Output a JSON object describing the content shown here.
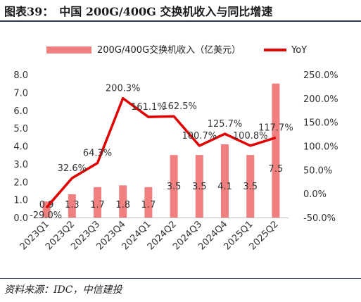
{
  "figure": {
    "title": "图表39：　中国 200G/400G 交换机收入与同比增速",
    "source": "资料来源：IDC，中信建投"
  },
  "chart_data": {
    "type": "bar",
    "categories": [
      "2023Q1",
      "2023Q2",
      "2023Q3",
      "2023Q4",
      "2024Q1",
      "2024Q2",
      "2024Q3",
      "2024Q4",
      "2025Q1",
      "2025Q2"
    ],
    "series": [
      {
        "name": "200G/400G交换机收入（亿美元）",
        "type": "bar",
        "axis": "left",
        "color": "#f08080",
        "values": [
          0.9,
          1.3,
          1.7,
          1.8,
          1.7,
          3.5,
          3.5,
          4.1,
          3.5,
          7.5
        ],
        "labels": [
          "0.9",
          "1.3",
          "1.7",
          "1.8",
          "1.7",
          "3.5",
          "3.5",
          "4.1",
          "3.5",
          "7.5"
        ]
      },
      {
        "name": "YoY",
        "type": "line",
        "axis": "right",
        "color": "#e00000",
        "values": [
          -29.0,
          32.6,
          64.3,
          200.3,
          161.1,
          162.5,
          100.7,
          125.7,
          100.8,
          117.7
        ],
        "labels": [
          "-29.0%",
          "32.6%",
          "64.3%",
          "200.3%",
          "161.1%",
          "162.5%",
          "100.7%",
          "125.7%",
          "100.8%",
          "117.7%"
        ]
      }
    ],
    "y_left": {
      "ylim": [
        0,
        8
      ],
      "ticks": [
        "0.0",
        "1.0",
        "2.0",
        "3.0",
        "4.0",
        "5.0",
        "6.0",
        "7.0",
        "8.0"
      ]
    },
    "y_right": {
      "ylim": [
        -50,
        250
      ],
      "ticks": [
        "-50.0%",
        "0.0%",
        "50.0%",
        "100.0%",
        "150.0%",
        "200.0%",
        "250.0%"
      ]
    },
    "legend": {
      "placement": "top",
      "items": [
        "200G/400G交换机收入（亿美元）",
        "YoY"
      ]
    },
    "grid": false
  }
}
